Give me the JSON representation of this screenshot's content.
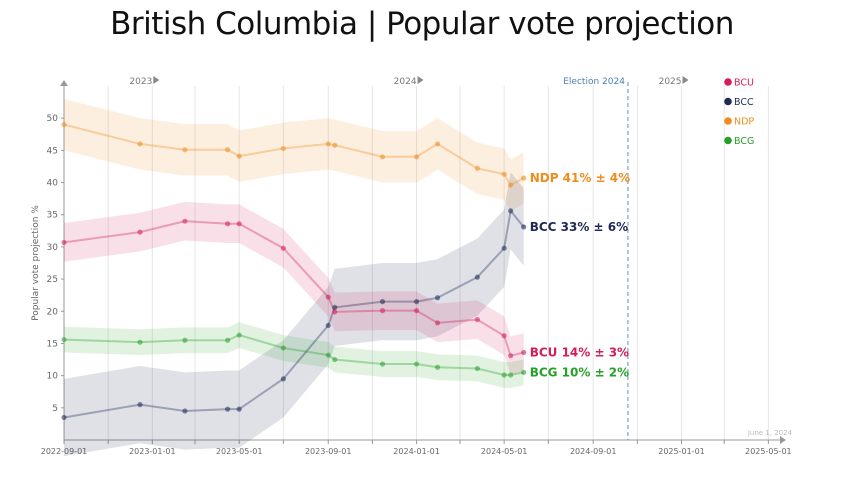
{
  "title": "British Columbia | Popular vote projection",
  "chart_data": {
    "type": "line",
    "title": "British Columbia | Popular vote projection",
    "xlabel": "",
    "ylabel": "Popular vote projection %",
    "ylim": [
      0,
      55
    ],
    "yticks": [
      5,
      10,
      15,
      20,
      25,
      30,
      35,
      40,
      45,
      50
    ],
    "xlim": [
      "2022-09-01",
      "2025-05-06"
    ],
    "xticks": [
      "2022-09-01",
      "2023-01-01",
      "2023-05-01",
      "2023-09-01",
      "2024-01-01",
      "2024-05-01",
      "2024-09-01",
      "2025-01-01",
      "2025-05-01"
    ],
    "year_markers": [
      {
        "label": "2023",
        "date": "2023-01-01"
      },
      {
        "label": "2024",
        "date": "2024-01-01"
      },
      {
        "label": "2025",
        "date": "2025-01-01"
      }
    ],
    "election": {
      "label": "Election 2024",
      "date": "2024-10-19"
    },
    "watermark": "June 1, 2024",
    "series": [
      {
        "name": "NDP",
        "color": "#f08c1e",
        "end_label": "NDP 41% ± 4%",
        "margin": 4,
        "points": [
          [
            "2022-09-01",
            49
          ],
          [
            "2022-12-15",
            46
          ],
          [
            "2023-02-15",
            45.1
          ],
          [
            "2023-04-15",
            45.1
          ],
          [
            "2023-05-01",
            44.1
          ],
          [
            "2023-07-01",
            45.3
          ],
          [
            "2023-09-01",
            46
          ],
          [
            "2023-09-10",
            45.8
          ],
          [
            "2023-11-15",
            44
          ],
          [
            "2024-01-01",
            44
          ],
          [
            "2024-01-30",
            46
          ],
          [
            "2024-03-25",
            42.2
          ],
          [
            "2024-05-01",
            41.3
          ],
          [
            "2024-05-10",
            39.6
          ],
          [
            "2024-05-28",
            40.7
          ]
        ]
      },
      {
        "name": "BCC",
        "color": "#1e2a56",
        "end_label": "BCC 33% ± 6%",
        "margin": 6,
        "points": [
          [
            "2022-09-01",
            3.5
          ],
          [
            "2022-12-15",
            5.5
          ],
          [
            "2023-02-15",
            4.5
          ],
          [
            "2023-04-15",
            4.8
          ],
          [
            "2023-05-01",
            4.8
          ],
          [
            "2023-07-01",
            9.5
          ],
          [
            "2023-09-01",
            17.8
          ],
          [
            "2023-09-10",
            20.6
          ],
          [
            "2023-11-15",
            21.5
          ],
          [
            "2024-01-01",
            21.5
          ],
          [
            "2024-01-30",
            22.1
          ],
          [
            "2024-03-25",
            25.3
          ],
          [
            "2024-05-01",
            29.8
          ],
          [
            "2024-05-10",
            35.6
          ],
          [
            "2024-05-28",
            33.1
          ]
        ]
      },
      {
        "name": "BCU",
        "color": "#d21e5a",
        "end_label": "BCU 14% ± 3%",
        "margin": 3,
        "points": [
          [
            "2022-09-01",
            30.7
          ],
          [
            "2022-12-15",
            32.3
          ],
          [
            "2023-02-15",
            34
          ],
          [
            "2023-04-15",
            33.6
          ],
          [
            "2023-05-01",
            33.6
          ],
          [
            "2023-07-01",
            29.8
          ],
          [
            "2023-09-01",
            22.2
          ],
          [
            "2023-09-10",
            19.9
          ],
          [
            "2023-11-15",
            20.1
          ],
          [
            "2024-01-01",
            20.1
          ],
          [
            "2024-01-30",
            18.2
          ],
          [
            "2024-03-25",
            18.7
          ],
          [
            "2024-05-01",
            16.2
          ],
          [
            "2024-05-10",
            13.1
          ],
          [
            "2024-05-28",
            13.6
          ]
        ]
      },
      {
        "name": "BCG",
        "color": "#28a028",
        "end_label": "BCG 10% ± 2%",
        "margin": 2,
        "points": [
          [
            "2022-09-01",
            15.6
          ],
          [
            "2022-12-15",
            15.2
          ],
          [
            "2023-02-15",
            15.5
          ],
          [
            "2023-04-15",
            15.5
          ],
          [
            "2023-05-01",
            16.3
          ],
          [
            "2023-07-01",
            14.3
          ],
          [
            "2023-09-01",
            13.2
          ],
          [
            "2023-09-10",
            12.5
          ],
          [
            "2023-11-15",
            11.8
          ],
          [
            "2024-01-01",
            11.8
          ],
          [
            "2024-01-30",
            11.3
          ],
          [
            "2024-03-25",
            11.1
          ],
          [
            "2024-05-01",
            10.1
          ],
          [
            "2024-05-10",
            10.1
          ],
          [
            "2024-05-28",
            10.5
          ]
        ]
      }
    ],
    "legend": [
      "BCU",
      "BCC",
      "NDP",
      "BCG"
    ],
    "legend_position": "top-right"
  }
}
